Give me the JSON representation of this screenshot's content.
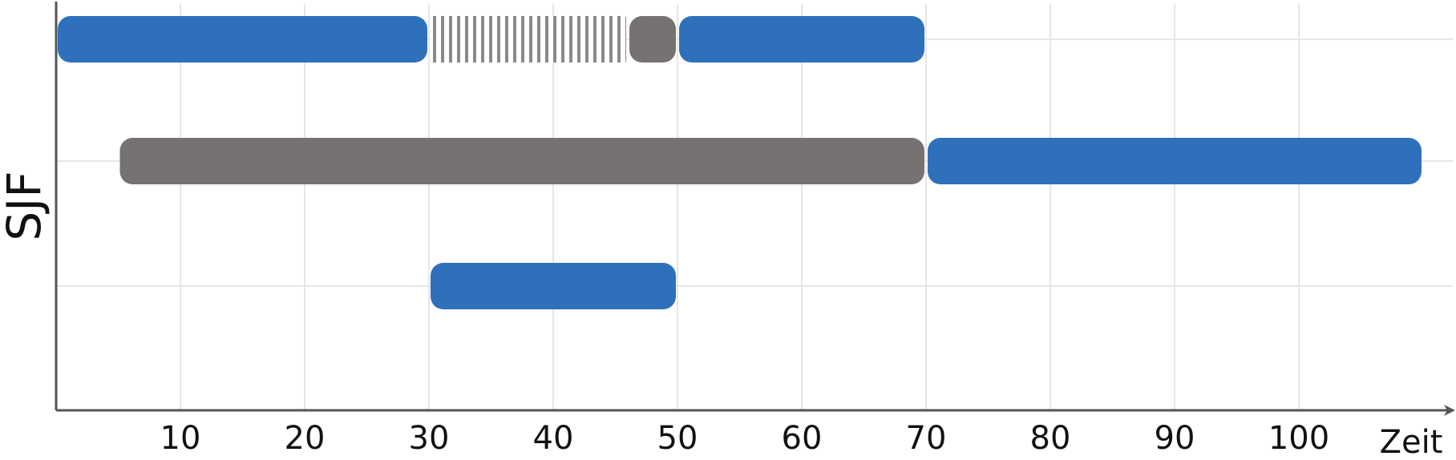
{
  "chart_data": {
    "type": "gantt",
    "title": "SJF",
    "xlabel": "Zeit",
    "ylabel": "",
    "xlim": [
      0,
      110
    ],
    "x_ticks": [
      10,
      20,
      30,
      40,
      50,
      60,
      70,
      80,
      90,
      100
    ],
    "grid": true,
    "legend": "none",
    "state_colors": {
      "running": "#2e70ba",
      "ready": "#767272",
      "blocked": "#767272"
    },
    "rows": [
      {
        "segments": [
          {
            "state": "running",
            "start": 0,
            "end": 30
          },
          {
            "state": "blocked",
            "start": 30,
            "end": 46
          },
          {
            "state": "ready",
            "start": 46,
            "end": 50
          },
          {
            "state": "running",
            "start": 50,
            "end": 70
          }
        ]
      },
      {
        "segments": [
          {
            "state": "ready",
            "start": 5,
            "end": 70
          },
          {
            "state": "running",
            "start": 70,
            "end": 110
          }
        ]
      },
      {
        "segments": [
          {
            "state": "running",
            "start": 30,
            "end": 50
          }
        ]
      }
    ]
  }
}
